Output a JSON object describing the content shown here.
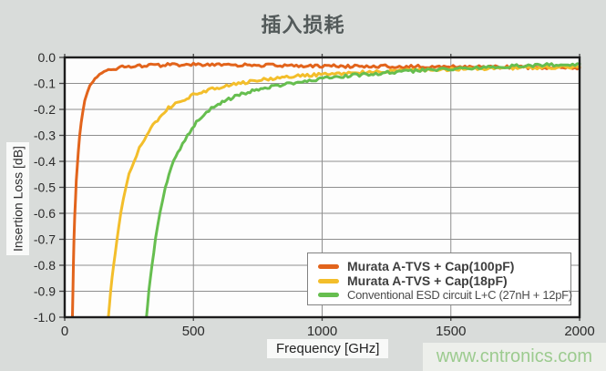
{
  "title": "插入损耗",
  "watermark": "www.cntronics.com",
  "colors": {
    "background": "#d9dcda",
    "title_text": "#535a5a",
    "watermark_text": "#9ccb8f",
    "watermark_bg": "#edefeb"
  },
  "chart_data": {
    "type": "line",
    "title": "插入损耗",
    "xlabel": "Frequency [GHz]",
    "ylabel": "Insertion Loss [dB]",
    "xlim": [
      0,
      2000
    ],
    "ylim": [
      -1.0,
      0.0
    ],
    "xticks": [
      0,
      500,
      1000,
      1500,
      2000
    ],
    "yticks": [
      0.0,
      -0.1,
      -0.2,
      -0.3,
      -0.4,
      -0.5,
      -0.6,
      -0.7,
      -0.8,
      -0.9,
      -1.0
    ],
    "grid": true,
    "legend_position": "lower right",
    "plot_bg": "#fdfdfd",
    "grid_color": "#8e8e8e",
    "border_color": "#1d1d1d",
    "tick_label_color": "#2b2b2b",
    "noise_db": 0.006,
    "series": [
      {
        "name": "Murata A-TVS + Cap(100pF)",
        "color": "#E2641C",
        "bold": true,
        "points": [
          [
            30,
            -1.0
          ],
          [
            32,
            -0.9
          ],
          [
            34,
            -0.79
          ],
          [
            36,
            -0.7
          ],
          [
            39,
            -0.61
          ],
          [
            42,
            -0.54
          ],
          [
            45,
            -0.48
          ],
          [
            49,
            -0.42
          ],
          [
            53,
            -0.36
          ],
          [
            58,
            -0.3
          ],
          [
            64,
            -0.25
          ],
          [
            70,
            -0.21
          ],
          [
            78,
            -0.17
          ],
          [
            88,
            -0.135
          ],
          [
            98,
            -0.11
          ],
          [
            110,
            -0.09
          ],
          [
            125,
            -0.073
          ],
          [
            145,
            -0.058
          ],
          [
            170,
            -0.048
          ],
          [
            200,
            -0.041
          ],
          [
            240,
            -0.036
          ],
          [
            300,
            -0.032
          ],
          [
            400,
            -0.029
          ],
          [
            500,
            -0.028
          ],
          [
            600,
            -0.029
          ],
          [
            700,
            -0.03
          ],
          [
            800,
            -0.031
          ],
          [
            900,
            -0.032
          ],
          [
            1000,
            -0.033
          ],
          [
            1100,
            -0.034
          ],
          [
            1200,
            -0.034
          ],
          [
            1300,
            -0.035
          ],
          [
            1400,
            -0.035
          ],
          [
            1500,
            -0.036
          ],
          [
            1600,
            -0.037
          ],
          [
            1700,
            -0.037
          ],
          [
            1800,
            -0.038
          ],
          [
            1900,
            -0.039
          ],
          [
            2000,
            -0.04
          ]
        ]
      },
      {
        "name": "Murata A-TVS + Cap(18pF)",
        "color": "#F3BE2B",
        "bold": true,
        "points": [
          [
            170,
            -1.0
          ],
          [
            174,
            -0.95
          ],
          [
            178,
            -0.9
          ],
          [
            184,
            -0.845
          ],
          [
            190,
            -0.8
          ],
          [
            196,
            -0.75
          ],
          [
            203,
            -0.7
          ],
          [
            210,
            -0.65
          ],
          [
            218,
            -0.6
          ],
          [
            228,
            -0.55
          ],
          [
            238,
            -0.5
          ],
          [
            250,
            -0.45
          ],
          [
            268,
            -0.4
          ],
          [
            290,
            -0.35
          ],
          [
            318,
            -0.3
          ],
          [
            352,
            -0.25
          ],
          [
            395,
            -0.2
          ],
          [
            420,
            -0.185
          ],
          [
            450,
            -0.168
          ],
          [
            490,
            -0.148
          ],
          [
            540,
            -0.131
          ],
          [
            600,
            -0.116
          ],
          [
            657,
            -0.104
          ],
          [
            720,
            -0.093
          ],
          [
            800,
            -0.082
          ],
          [
            880,
            -0.074
          ],
          [
            960,
            -0.068
          ],
          [
            1030,
            -0.064
          ],
          [
            1130,
            -0.059
          ],
          [
            1230,
            -0.055
          ],
          [
            1330,
            -0.051
          ],
          [
            1430,
            -0.047
          ],
          [
            1540,
            -0.044
          ],
          [
            1640,
            -0.042
          ],
          [
            1750,
            -0.04
          ],
          [
            1870,
            -0.038
          ],
          [
            2000,
            -0.036
          ]
        ]
      },
      {
        "name": "Conventional ESD circuit L+C (27nH + 12pF)",
        "color": "#66BE4F",
        "bold": false,
        "points": [
          [
            318,
            -1.0
          ],
          [
            322,
            -0.95
          ],
          [
            327,
            -0.9
          ],
          [
            333,
            -0.85
          ],
          [
            339,
            -0.8
          ],
          [
            346,
            -0.75
          ],
          [
            353,
            -0.7
          ],
          [
            361,
            -0.65
          ],
          [
            370,
            -0.6
          ],
          [
            380,
            -0.55
          ],
          [
            391,
            -0.5
          ],
          [
            405,
            -0.45
          ],
          [
            423,
            -0.4
          ],
          [
            448,
            -0.35
          ],
          [
            477,
            -0.3
          ],
          [
            512,
            -0.25
          ],
          [
            550,
            -0.21
          ],
          [
            580,
            -0.19
          ],
          [
            620,
            -0.168
          ],
          [
            670,
            -0.147
          ],
          [
            720,
            -0.131
          ],
          [
            770,
            -0.119
          ],
          [
            820,
            -0.109
          ],
          [
            880,
            -0.098
          ],
          [
            950,
            -0.088
          ],
          [
            1020,
            -0.079
          ],
          [
            1100,
            -0.071
          ],
          [
            1190,
            -0.063
          ],
          [
            1290,
            -0.056
          ],
          [
            1390,
            -0.05
          ],
          [
            1490,
            -0.045
          ],
          [
            1600,
            -0.04
          ],
          [
            1710,
            -0.035
          ],
          [
            1810,
            -0.031
          ],
          [
            1900,
            -0.028
          ],
          [
            2000,
            -0.025
          ]
        ]
      }
    ]
  }
}
